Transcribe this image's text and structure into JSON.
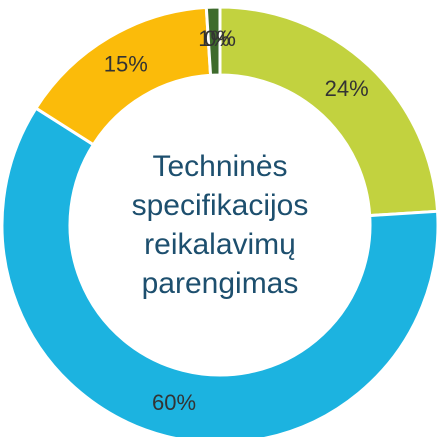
{
  "chart_data": {
    "type": "donut",
    "title": "Techninės specifikacijos reikalavimų parengimas",
    "categories": [
      null,
      null,
      null,
      null,
      null
    ],
    "values": [
      24,
      60,
      15,
      1,
      0
    ],
    "value_labels": [
      "24%",
      "60%",
      "15%",
      "1%",
      "0%"
    ],
    "colors": [
      "#c2d23f",
      "#1cb3e0",
      "#fbbb0a",
      "#3e6b2c",
      "#7a9a3a"
    ]
  }
}
